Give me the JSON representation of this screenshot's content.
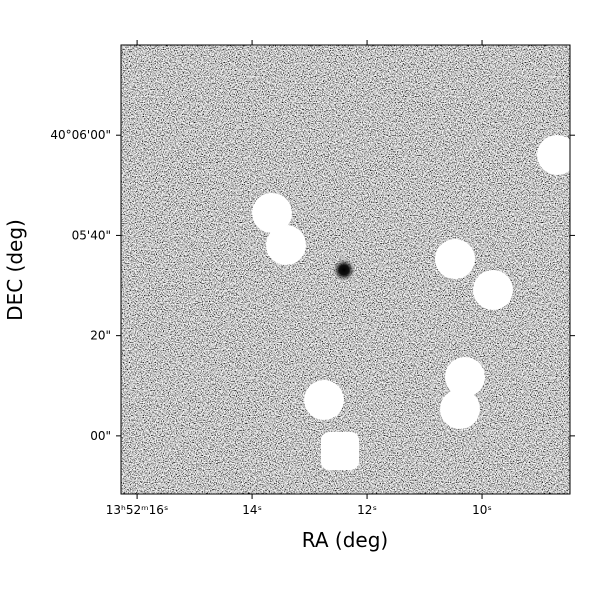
{
  "chart_data": {
    "type": "image",
    "x_label": "RA (deg)",
    "y_label": "DEC (deg)",
    "xlim": [
      16.28,
      8.47
    ],
    "ylim": [
      -11.6,
      78
    ],
    "xticks": [
      {
        "value": 16,
        "label": "13ʰ52ᵐ16ˢ"
      },
      {
        "value": 14,
        "label": "14ˢ"
      },
      {
        "value": 12,
        "label": "12ˢ"
      },
      {
        "value": 10,
        "label": "10ˢ"
      }
    ],
    "yticks": [
      {
        "value": 60,
        "label": "40°06'00\""
      },
      {
        "value": 40,
        "label": "05'40\""
      },
      {
        "value": 20,
        "label": "20\""
      },
      {
        "value": 0,
        "label": "00\""
      }
    ],
    "colormap": "gray"
  }
}
